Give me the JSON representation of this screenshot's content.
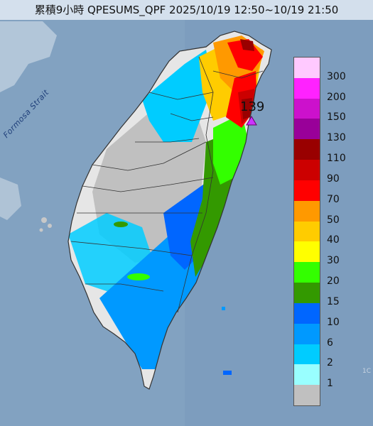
{
  "title": "累積9小時 QPESUMS_QPF 2025/10/19 12:50~10/19 21:50",
  "sea_label": "Formosa Strait",
  "max_marker": {
    "value": "139",
    "icon": "triangle-marker-icon",
    "color": "#cc33ff"
  },
  "corner_text": "1C",
  "legend": {
    "unit_levels": [
      {
        "label": "300",
        "color": "#ffc9ff"
      },
      {
        "label": "200",
        "color": "#ff22ff"
      },
      {
        "label": "150",
        "color": "#cc11cc"
      },
      {
        "label": "130",
        "color": "#990099"
      },
      {
        "label": "110",
        "color": "#990000"
      },
      {
        "label": "90",
        "color": "#cc0000"
      },
      {
        "label": "70",
        "color": "#ff0000"
      },
      {
        "label": "50",
        "color": "#ff9900"
      },
      {
        "label": "40",
        "color": "#ffcc00"
      },
      {
        "label": "30",
        "color": "#ffff00"
      },
      {
        "label": "20",
        "color": "#33ff00"
      },
      {
        "label": "15",
        "color": "#339900"
      },
      {
        "label": "10",
        "color": "#0066ff"
      },
      {
        "label": "6",
        "color": "#0099ff"
      },
      {
        "label": "2",
        "color": "#00ccff"
      },
      {
        "label": "1",
        "color": "#99ffff"
      },
      {
        "label": "",
        "color": "#c0c0c0"
      }
    ]
  }
}
